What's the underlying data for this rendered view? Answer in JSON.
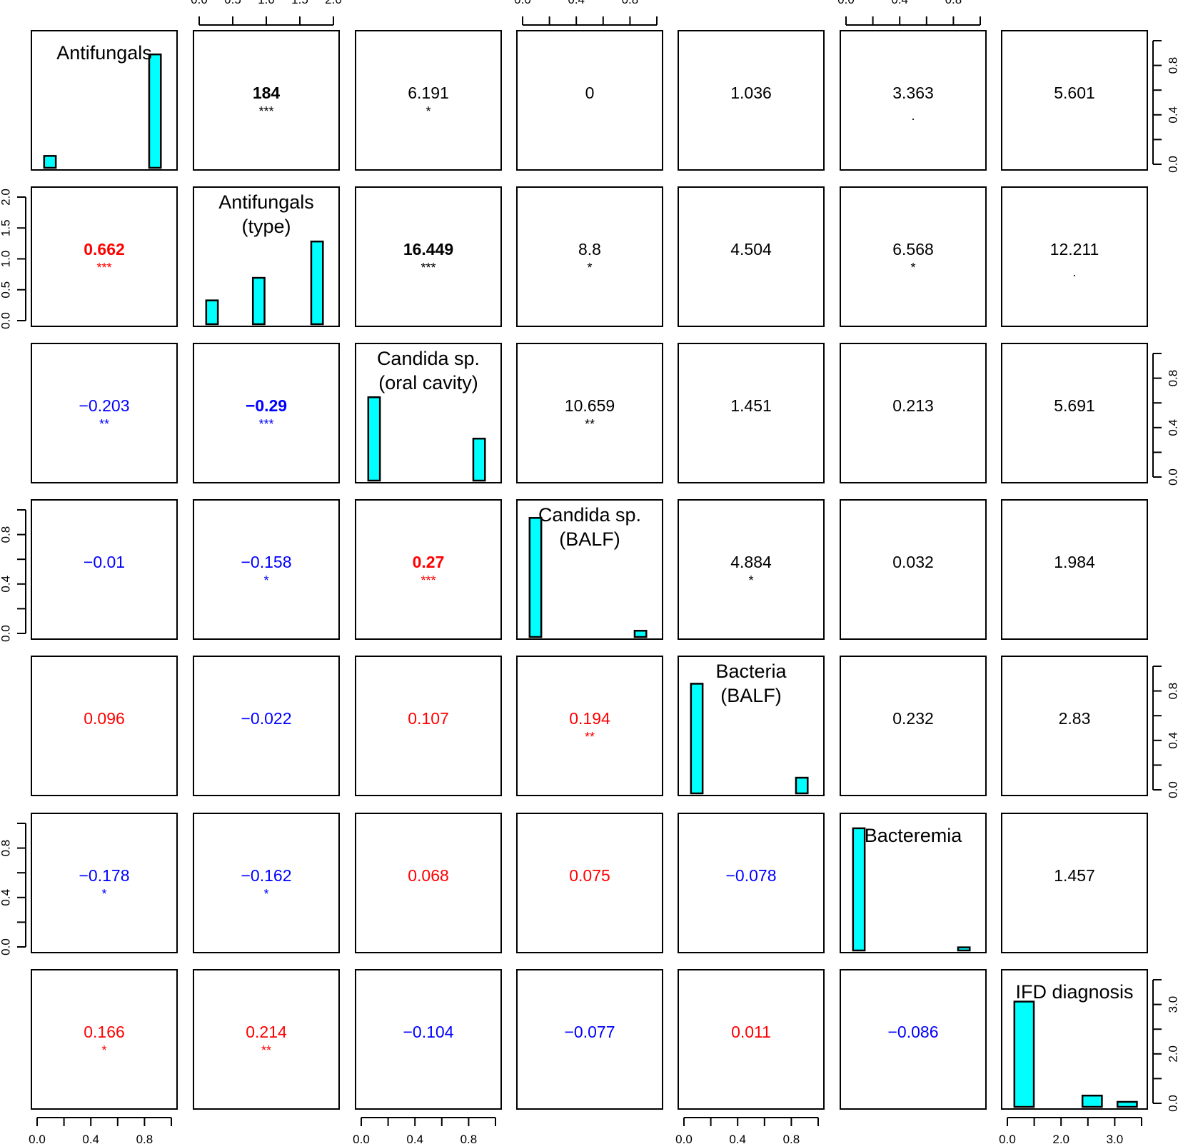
{
  "chart_data": {
    "type": "pairs",
    "variables": [
      {
        "name": "Antifungals",
        "label_lines": [
          "Antifungals"
        ],
        "axis_ticks": [
          "0.0",
          "0.4",
          "0.8"
        ]
      },
      {
        "name": "Antifungals (type)",
        "label_lines": [
          "Antifungals",
          "(type)"
        ],
        "axis_ticks": [
          "0.0",
          "0.5",
          "1.0",
          "1.5",
          "2.0"
        ]
      },
      {
        "name": "Candida sp. (oral cavity)",
        "label_lines": [
          "Candida sp.",
          "(oral cavity)"
        ],
        "axis_ticks": [
          "0.0",
          "0.4",
          "0.8"
        ]
      },
      {
        "name": "Candida sp. (BALF)",
        "label_lines": [
          "Candida sp.",
          "(BALF)"
        ],
        "axis_ticks": [
          "0.0",
          "0.4",
          "0.8"
        ]
      },
      {
        "name": "Bacteria (BALF)",
        "label_lines": [
          "Bacteria",
          "(BALF)"
        ],
        "axis_ticks": [
          "0.0",
          "0.4",
          "0.8"
        ]
      },
      {
        "name": "Bacteremia",
        "label_lines": [
          "Bacteremia"
        ],
        "axis_ticks": [
          "0.0",
          "0.4",
          "0.8"
        ]
      },
      {
        "name": "IFD diagnosis",
        "label_lines": [
          "IFD diagnosis"
        ],
        "axis_ticks": [
          "0.0",
          "2.0",
          "3.0"
        ]
      }
    ],
    "histograms": [
      {
        "xlim": [
          0,
          1
        ],
        "bars": [
          {
            "x": 0.05,
            "w": 0.1,
            "h": 0.095
          },
          {
            "x": 0.95,
            "w": 0.1,
            "h": 0.905
          }
        ]
      },
      {
        "xlim": [
          0,
          2
        ],
        "bars": [
          {
            "x": 0.1,
            "w": 0.2,
            "h": 0.19
          },
          {
            "x": 0.9,
            "w": 0.2,
            "h": 0.37
          },
          {
            "x": 1.9,
            "w": 0.2,
            "h": 0.66
          }
        ]
      },
      {
        "xlim": [
          0,
          1
        ],
        "bars": [
          {
            "x": 0.05,
            "w": 0.1,
            "h": 0.665
          },
          {
            "x": 0.95,
            "w": 0.1,
            "h": 0.335
          }
        ]
      },
      {
        "xlim": [
          0,
          1
        ],
        "bars": [
          {
            "x": 0.05,
            "w": 0.1,
            "h": 0.95
          },
          {
            "x": 0.95,
            "w": 0.1,
            "h": 0.05
          }
        ]
      },
      {
        "xlim": [
          0,
          1
        ],
        "bars": [
          {
            "x": 0.05,
            "w": 0.1,
            "h": 0.875
          },
          {
            "x": 0.95,
            "w": 0.1,
            "h": 0.125
          }
        ]
      },
      {
        "xlim": [
          0,
          1
        ],
        "bars": [
          {
            "x": 0.05,
            "w": 0.1,
            "h": 0.975
          },
          {
            "x": 0.95,
            "w": 0.1,
            "h": 0.025
          }
        ]
      },
      {
        "xlim": [
          0,
          3
        ],
        "bars": [
          {
            "x": 0.25,
            "w": 0.5,
            "h": 0.84
          },
          {
            "x": 2.0,
            "w": 0.5,
            "h": 0.09
          },
          {
            "x": 2.9,
            "w": 0.5,
            "h": 0.04
          }
        ]
      }
    ],
    "correlations": [
      {
        "row": 2,
        "col": 1,
        "value": "0.662",
        "stars": "***",
        "sign": "positive",
        "bold": true
      },
      {
        "row": 3,
        "col": 1,
        "value": "−0.203",
        "stars": "**",
        "sign": "negative",
        "bold": false
      },
      {
        "row": 3,
        "col": 2,
        "value": "−0.29",
        "stars": "***",
        "sign": "negative",
        "bold": true
      },
      {
        "row": 4,
        "col": 1,
        "value": "−0.01",
        "stars": "",
        "sign": "negative",
        "bold": false
      },
      {
        "row": 4,
        "col": 2,
        "value": "−0.158",
        "stars": "*",
        "sign": "negative",
        "bold": false
      },
      {
        "row": 4,
        "col": 3,
        "value": "0.27",
        "stars": "***",
        "sign": "positive",
        "bold": true
      },
      {
        "row": 5,
        "col": 1,
        "value": "0.096",
        "stars": "",
        "sign": "positive",
        "bold": false
      },
      {
        "row": 5,
        "col": 2,
        "value": "−0.022",
        "stars": "",
        "sign": "negative",
        "bold": false
      },
      {
        "row": 5,
        "col": 3,
        "value": "0.107",
        "stars": "",
        "sign": "positive",
        "bold": false
      },
      {
        "row": 5,
        "col": 4,
        "value": "0.194",
        "stars": "**",
        "sign": "positive",
        "bold": false
      },
      {
        "row": 6,
        "col": 1,
        "value": "−0.178",
        "stars": "*",
        "sign": "negative",
        "bold": false
      },
      {
        "row": 6,
        "col": 2,
        "value": "−0.162",
        "stars": "*",
        "sign": "negative",
        "bold": false
      },
      {
        "row": 6,
        "col": 3,
        "value": "0.068",
        "stars": "",
        "sign": "positive",
        "bold": false
      },
      {
        "row": 6,
        "col": 4,
        "value": "0.075",
        "stars": "",
        "sign": "positive",
        "bold": false
      },
      {
        "row": 6,
        "col": 5,
        "value": "−0.078",
        "stars": "",
        "sign": "negative",
        "bold": false
      },
      {
        "row": 7,
        "col": 1,
        "value": "0.166",
        "stars": "*",
        "sign": "positive",
        "bold": false
      },
      {
        "row": 7,
        "col": 2,
        "value": "0.214",
        "stars": "**",
        "sign": "positive",
        "bold": false
      },
      {
        "row": 7,
        "col": 3,
        "value": "−0.104",
        "stars": "",
        "sign": "negative",
        "bold": false
      },
      {
        "row": 7,
        "col": 4,
        "value": "−0.077",
        "stars": "",
        "sign": "negative",
        "bold": false
      },
      {
        "row": 7,
        "col": 5,
        "value": "0.011",
        "stars": "",
        "sign": "positive",
        "bold": false
      },
      {
        "row": 7,
        "col": 6,
        "value": "−0.086",
        "stars": "",
        "sign": "negative",
        "bold": false
      }
    ],
    "chi_square": [
      {
        "row": 1,
        "col": 2,
        "value": "184",
        "stars": "***",
        "bold": true
      },
      {
        "row": 1,
        "col": 3,
        "value": "6.191",
        "stars": "*",
        "bold": false
      },
      {
        "row": 1,
        "col": 4,
        "value": "0",
        "stars": "",
        "bold": false
      },
      {
        "row": 1,
        "col": 5,
        "value": "1.036",
        "stars": "",
        "bold": false
      },
      {
        "row": 1,
        "col": 6,
        "value": "3.363",
        "stars": ".",
        "bold": false
      },
      {
        "row": 1,
        "col": 7,
        "value": "5.601",
        "stars": "",
        "bold": false
      },
      {
        "row": 2,
        "col": 3,
        "value": "16.449",
        "stars": "***",
        "bold": true
      },
      {
        "row": 2,
        "col": 4,
        "value": "8.8",
        "stars": "*",
        "bold": false
      },
      {
        "row": 2,
        "col": 5,
        "value": "4.504",
        "stars": "",
        "bold": false
      },
      {
        "row": 2,
        "col": 6,
        "value": "6.568",
        "stars": "*",
        "bold": false
      },
      {
        "row": 2,
        "col": 7,
        "value": "12.211",
        "stars": ".",
        "bold": false
      },
      {
        "row": 3,
        "col": 4,
        "value": "10.659",
        "stars": "**",
        "bold": false
      },
      {
        "row": 3,
        "col": 5,
        "value": "1.451",
        "stars": "",
        "bold": false
      },
      {
        "row": 3,
        "col": 6,
        "value": "0.213",
        "stars": "",
        "bold": false
      },
      {
        "row": 3,
        "col": 7,
        "value": "5.691",
        "stars": "",
        "bold": false
      },
      {
        "row": 4,
        "col": 5,
        "value": "4.884",
        "stars": "*",
        "bold": false
      },
      {
        "row": 4,
        "col": 6,
        "value": "0.032",
        "stars": "",
        "bold": false
      },
      {
        "row": 4,
        "col": 7,
        "value": "1.984",
        "stars": "",
        "bold": false
      },
      {
        "row": 5,
        "col": 6,
        "value": "0.232",
        "stars": "",
        "bold": false
      },
      {
        "row": 5,
        "col": 7,
        "value": "2.83",
        "stars": "",
        "bold": false
      },
      {
        "row": 6,
        "col": 7,
        "value": "1.457",
        "stars": "",
        "bold": false
      }
    ],
    "top_axis_cols": [
      2,
      4,
      6
    ],
    "bottom_axis_cols": [
      1,
      3,
      5,
      7
    ],
    "left_axis_rows": [
      2,
      4,
      6
    ],
    "right_axis_rows": [
      1,
      3,
      5,
      7
    ],
    "colors": {
      "positive": "#ff0000",
      "negative": "#0000ff",
      "neutral": "#000000",
      "bar_fill": "#00ffff",
      "bar_stroke": "#000000"
    }
  }
}
